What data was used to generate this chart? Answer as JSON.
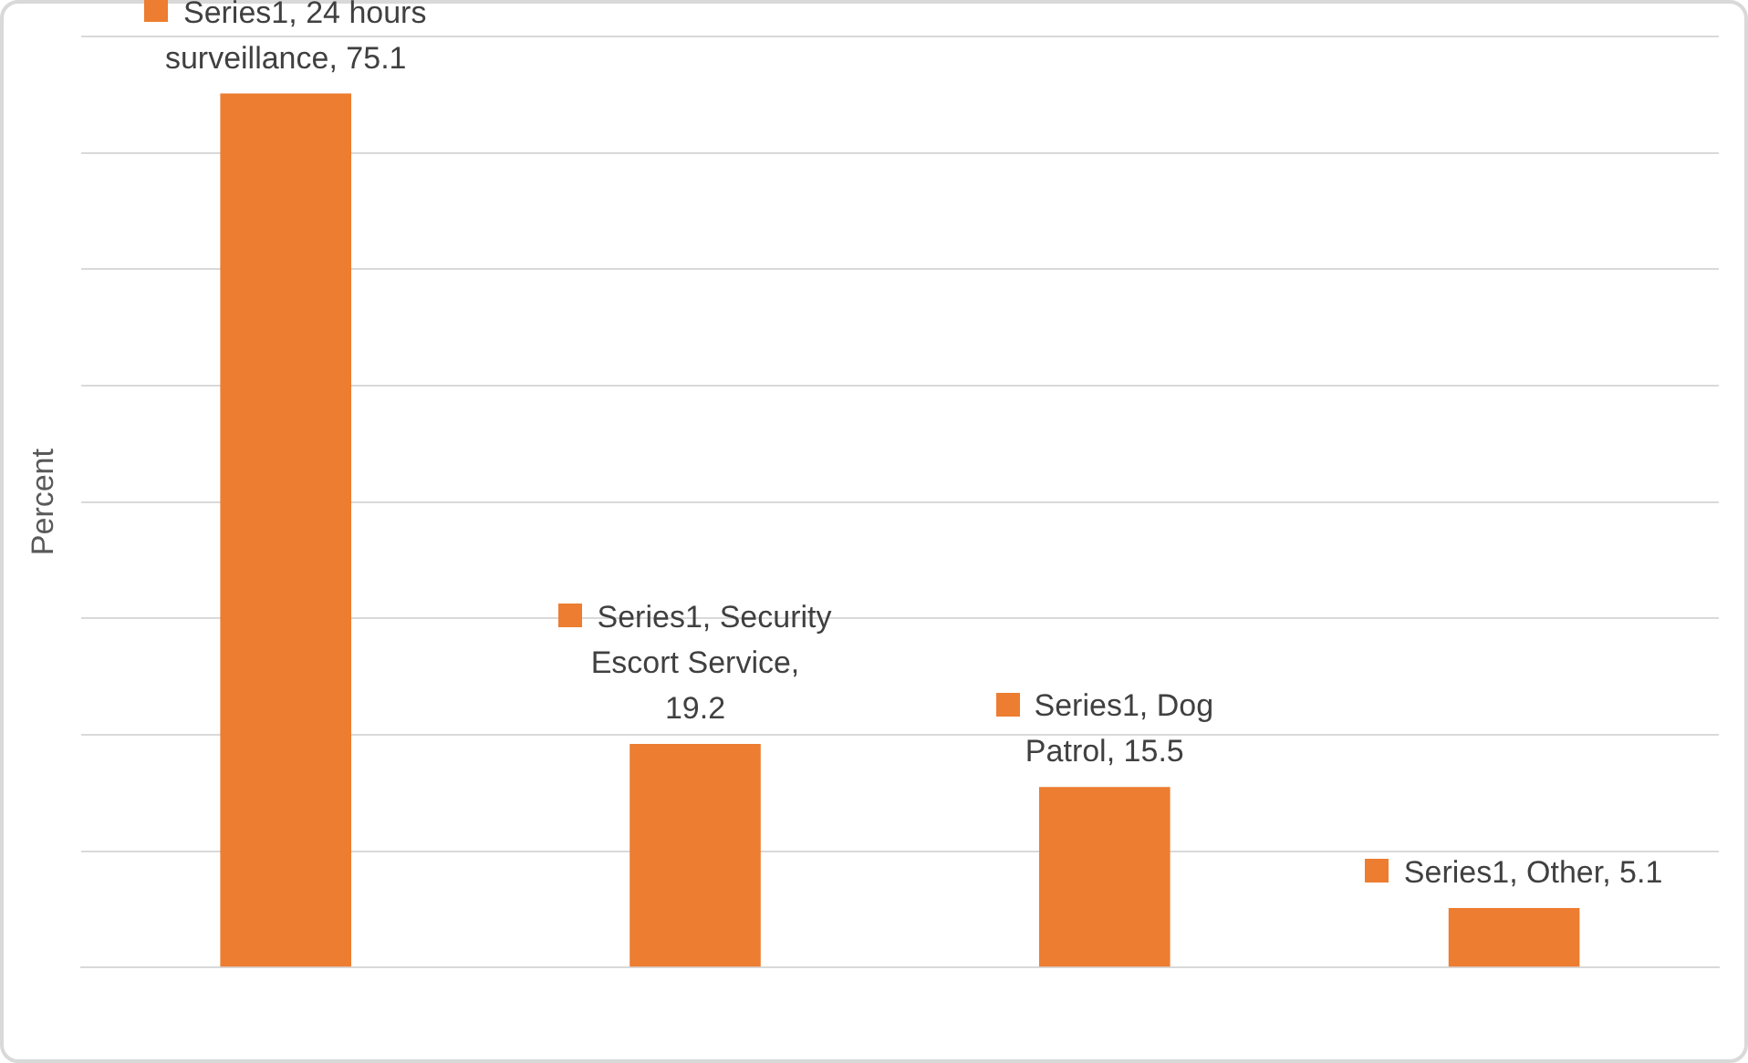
{
  "chart_data": {
    "type": "bar",
    "ylabel": "Percent",
    "categories": [
      null,
      null,
      null,
      null
    ],
    "values": [
      75.1,
      19.2,
      15.5,
      5.1
    ],
    "color": "#ed7d31",
    "value_labels": [
      "Series1, 24 hours surveillance, 75.1",
      "Series1, Security Escort Service, 19.2",
      "Series1, Dog Patrol, 15.5",
      "Series1, Other, 5.1"
    ],
    "ylim": [
      0,
      80
    ],
    "yticks": [
      {
        "value": 0,
        "label": null
      },
      {
        "value": 10,
        "label": null
      },
      {
        "value": 20,
        "label": null
      },
      {
        "value": 30,
        "label": null
      },
      {
        "value": 40,
        "label": null
      },
      {
        "value": 50,
        "label": null
      },
      {
        "value": 60,
        "label": null
      },
      {
        "value": 70,
        "label": null
      },
      {
        "value": 80,
        "label": null
      }
    ],
    "grid": "y"
  }
}
